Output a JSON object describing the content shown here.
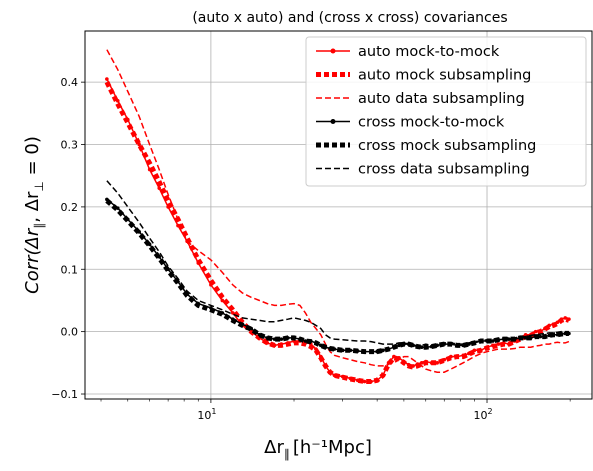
{
  "chart_data": {
    "type": "line",
    "title": "(auto x auto) and (cross x cross) covariances",
    "xlabel_main": "Δr",
    "xlabel_sub": "∥",
    "xlabel_unit": "[h⁻¹Mpc]",
    "ylabel_main": "Corr(Δr",
    "ylabel_sub1": "∥",
    "ylabel_mid": ", Δr",
    "ylabel_sub2": "⊥",
    "ylabel_end": " = 0)",
    "x_scale": "log",
    "xlim": [
      3.5,
      240
    ],
    "ylim": [
      -0.108,
      0.482
    ],
    "yticks": [
      -0.1,
      0.0,
      0.1,
      0.2,
      0.3,
      0.4
    ],
    "ytick_labels": [
      "−0.1",
      "0.0",
      "0.1",
      "0.2",
      "0.3",
      "0.4"
    ],
    "xticks": [
      10,
      100
    ],
    "xtick_base": [
      "10",
      "10"
    ],
    "xtick_exp": [
      "1",
      "2"
    ],
    "grid": true,
    "legend_position": "top-right",
    "series": [
      {
        "name": "auto mock-to-mock",
        "color": "#ff0000",
        "style": "solid-dots",
        "x": [
          4.2,
          4.6,
          5.0,
          5.5,
          6.0,
          6.5,
          7.0,
          7.6,
          8.2,
          9.0,
          10.0,
          11.0,
          12.0,
          13.0,
          14.0,
          15.0,
          16.0,
          17.0,
          18.0,
          19.0,
          20.0,
          21.0,
          22.0,
          23.0,
          24.0,
          25.0,
          26.0,
          27.0,
          28.0,
          30.0,
          32.0,
          34.0,
          36.0,
          38.0,
          40.0,
          42.0,
          44.0,
          46.0,
          48.0,
          50.0,
          52.0,
          54.0,
          56.0,
          58.0,
          60.0,
          63.0,
          66.0,
          70.0,
          74.0,
          78.0,
          82.0,
          86.0,
          90.0,
          95.0,
          100.0,
          105.0,
          110.0,
          115.0,
          120.0,
          126.0,
          132.0,
          138.0,
          144.0,
          150.0,
          156.0,
          162.0,
          168.0,
          174.0,
          180.0,
          186.0,
          192.0,
          198.0
        ],
        "y": [
          0.405,
          0.37,
          0.34,
          0.3,
          0.26,
          0.23,
          0.2,
          0.17,
          0.145,
          0.11,
          0.075,
          0.05,
          0.03,
          0.01,
          0.0,
          -0.01,
          -0.018,
          -0.022,
          -0.02,
          -0.018,
          -0.015,
          -0.015,
          -0.017,
          -0.02,
          -0.028,
          -0.04,
          -0.055,
          -0.065,
          -0.07,
          -0.072,
          -0.075,
          -0.078,
          -0.08,
          -0.08,
          -0.078,
          -0.07,
          -0.05,
          -0.04,
          -0.042,
          -0.048,
          -0.053,
          -0.055,
          -0.052,
          -0.05,
          -0.048,
          -0.05,
          -0.05,
          -0.045,
          -0.04,
          -0.04,
          -0.038,
          -0.035,
          -0.03,
          -0.03,
          -0.025,
          -0.022,
          -0.02,
          -0.018,
          -0.02,
          -0.015,
          -0.01,
          -0.005,
          -0.005,
          0.0,
          0.0,
          0.005,
          0.01,
          0.012,
          0.015,
          0.02,
          0.022,
          0.02
        ]
      },
      {
        "name": "auto mock subsampling",
        "color": "#ff0000",
        "style": "thick-dotted",
        "x": [
          4.2,
          4.6,
          5.0,
          5.5,
          6.0,
          6.5,
          7.0,
          7.6,
          8.2,
          9.0,
          10.0,
          11.0,
          12.0,
          13.0,
          14.0,
          15.0,
          16.0,
          17.0,
          18.0,
          19.0,
          20.0,
          21.0,
          22.0,
          23.0,
          24.0,
          25.0,
          26.0,
          27.0,
          28.0,
          30.0,
          32.0,
          34.0,
          36.0,
          38.0,
          40.0,
          42.0,
          44.0,
          46.0,
          48.0,
          50.0,
          52.0,
          54.0,
          56.0,
          58.0,
          60.0,
          63.0,
          66.0,
          70.0,
          74.0,
          78.0,
          82.0,
          86.0,
          90.0,
          95.0,
          100.0,
          105.0,
          110.0,
          115.0,
          120.0,
          126.0,
          132.0,
          138.0,
          144.0,
          150.0,
          156.0,
          162.0,
          168.0,
          174.0,
          180.0,
          186.0,
          192.0,
          198.0
        ],
        "y": [
          0.4,
          0.365,
          0.335,
          0.3,
          0.27,
          0.24,
          0.21,
          0.18,
          0.15,
          0.115,
          0.082,
          0.055,
          0.035,
          0.015,
          0.0,
          -0.01,
          -0.018,
          -0.022,
          -0.022,
          -0.02,
          -0.018,
          -0.018,
          -0.02,
          -0.024,
          -0.03,
          -0.042,
          -0.055,
          -0.065,
          -0.07,
          -0.073,
          -0.076,
          -0.078,
          -0.08,
          -0.08,
          -0.078,
          -0.07,
          -0.052,
          -0.042,
          -0.044,
          -0.05,
          -0.055,
          -0.057,
          -0.055,
          -0.052,
          -0.05,
          -0.05,
          -0.05,
          -0.046,
          -0.042,
          -0.04,
          -0.04,
          -0.036,
          -0.032,
          -0.03,
          -0.026,
          -0.024,
          -0.022,
          -0.02,
          -0.02,
          -0.016,
          -0.012,
          -0.008,
          -0.006,
          -0.002,
          0.0,
          0.004,
          0.008,
          0.01,
          0.013,
          0.018,
          0.02,
          0.018
        ]
      },
      {
        "name": "auto data subsampling",
        "color": "#ff0000",
        "style": "dashed",
        "x": [
          4.2,
          4.6,
          5.0,
          5.5,
          6.0,
          6.5,
          7.0,
          7.6,
          8.2,
          9.0,
          10.0,
          11.0,
          12.0,
          13.0,
          14.0,
          15.0,
          16.0,
          17.0,
          18.0,
          19.0,
          20.0,
          21.0,
          22.0,
          23.0,
          24.0,
          25.0,
          26.0,
          27.0,
          28.0,
          30.0,
          32.0,
          34.0,
          36.0,
          38.0,
          40.0,
          42.0,
          44.0,
          46.0,
          48.0,
          50.0,
          52.0,
          54.0,
          56.0,
          58.0,
          60.0,
          63.0,
          66.0,
          70.0,
          74.0,
          78.0,
          82.0,
          86.0,
          90.0,
          95.0,
          100.0,
          105.0,
          110.0,
          115.0,
          120.0,
          126.0,
          132.0,
          138.0,
          144.0,
          150.0,
          156.0,
          162.0,
          168.0,
          174.0,
          180.0,
          186.0,
          192.0,
          198.0
        ],
        "y": [
          0.452,
          0.42,
          0.385,
          0.345,
          0.3,
          0.26,
          0.22,
          0.18,
          0.145,
          0.13,
          0.115,
          0.095,
          0.075,
          0.062,
          0.055,
          0.05,
          0.045,
          0.042,
          0.042,
          0.044,
          0.045,
          0.042,
          0.03,
          0.015,
          0.005,
          -0.005,
          -0.02,
          -0.032,
          -0.038,
          -0.042,
          -0.045,
          -0.048,
          -0.05,
          -0.053,
          -0.055,
          -0.055,
          -0.052,
          -0.05,
          -0.045,
          -0.04,
          -0.04,
          -0.045,
          -0.05,
          -0.055,
          -0.06,
          -0.063,
          -0.065,
          -0.065,
          -0.06,
          -0.055,
          -0.05,
          -0.045,
          -0.04,
          -0.035,
          -0.032,
          -0.03,
          -0.028,
          -0.028,
          -0.028,
          -0.027,
          -0.025,
          -0.025,
          -0.025,
          -0.023,
          -0.022,
          -0.02,
          -0.02,
          -0.018,
          -0.017,
          -0.018,
          -0.018,
          -0.016
        ]
      },
      {
        "name": "cross mock-to-mock",
        "color": "#000000",
        "style": "solid-dots",
        "x": [
          4.2,
          4.6,
          5.0,
          5.5,
          6.0,
          6.5,
          7.0,
          7.6,
          8.2,
          9.0,
          10.0,
          11.0,
          12.0,
          13.0,
          14.0,
          15.0,
          16.0,
          17.0,
          18.0,
          19.0,
          20.0,
          21.0,
          22.0,
          23.0,
          24.0,
          25.0,
          26.0,
          27.0,
          28.0,
          30.0,
          32.0,
          34.0,
          36.0,
          38.0,
          40.0,
          42.0,
          44.0,
          46.0,
          48.0,
          50.0,
          52.0,
          54.0,
          56.0,
          58.0,
          60.0,
          63.0,
          66.0,
          70.0,
          74.0,
          78.0,
          82.0,
          86.0,
          90.0,
          95.0,
          100.0,
          105.0,
          110.0,
          115.0,
          120.0,
          126.0,
          132.0,
          138.0,
          144.0,
          150.0,
          156.0,
          162.0,
          168.0,
          174.0,
          180.0,
          186.0,
          192.0,
          198.0
        ],
        "y": [
          0.212,
          0.198,
          0.18,
          0.16,
          0.14,
          0.12,
          0.1,
          0.08,
          0.06,
          0.045,
          0.038,
          0.03,
          0.02,
          0.012,
          0.005,
          -0.005,
          -0.01,
          -0.012,
          -0.012,
          -0.01,
          -0.01,
          -0.012,
          -0.015,
          -0.015,
          -0.018,
          -0.022,
          -0.025,
          -0.027,
          -0.028,
          -0.03,
          -0.03,
          -0.031,
          -0.032,
          -0.032,
          -0.032,
          -0.03,
          -0.028,
          -0.025,
          -0.022,
          -0.02,
          -0.02,
          -0.022,
          -0.024,
          -0.025,
          -0.025,
          -0.024,
          -0.022,
          -0.02,
          -0.02,
          -0.022,
          -0.022,
          -0.02,
          -0.018,
          -0.015,
          -0.015,
          -0.015,
          -0.013,
          -0.012,
          -0.012,
          -0.012,
          -0.01,
          -0.01,
          -0.01,
          -0.008,
          -0.008,
          -0.008,
          -0.006,
          -0.005,
          -0.005,
          -0.004,
          -0.003,
          -0.003
        ]
      },
      {
        "name": "cross mock subsampling",
        "color": "#000000",
        "style": "thick-dotted",
        "x": [
          4.2,
          4.6,
          5.0,
          5.5,
          6.0,
          6.5,
          7.0,
          7.6,
          8.2,
          9.0,
          10.0,
          11.0,
          12.0,
          13.0,
          14.0,
          15.0,
          16.0,
          17.0,
          18.0,
          19.0,
          20.0,
          21.0,
          22.0,
          23.0,
          24.0,
          25.0,
          26.0,
          27.0,
          28.0,
          30.0,
          32.0,
          34.0,
          36.0,
          38.0,
          40.0,
          42.0,
          44.0,
          46.0,
          48.0,
          50.0,
          52.0,
          54.0,
          56.0,
          58.0,
          60.0,
          63.0,
          66.0,
          70.0,
          74.0,
          78.0,
          82.0,
          86.0,
          90.0,
          95.0,
          100.0,
          105.0,
          110.0,
          115.0,
          120.0,
          126.0,
          132.0,
          138.0,
          144.0,
          150.0,
          156.0,
          162.0,
          168.0,
          174.0,
          180.0,
          186.0,
          192.0,
          198.0
        ],
        "y": [
          0.21,
          0.195,
          0.178,
          0.158,
          0.138,
          0.118,
          0.098,
          0.078,
          0.058,
          0.042,
          0.035,
          0.028,
          0.018,
          0.01,
          0.004,
          -0.005,
          -0.01,
          -0.012,
          -0.012,
          -0.01,
          -0.01,
          -0.012,
          -0.015,
          -0.016,
          -0.018,
          -0.022,
          -0.025,
          -0.027,
          -0.028,
          -0.03,
          -0.03,
          -0.031,
          -0.032,
          -0.032,
          -0.032,
          -0.03,
          -0.028,
          -0.025,
          -0.022,
          -0.02,
          -0.02,
          -0.022,
          -0.024,
          -0.025,
          -0.025,
          -0.024,
          -0.022,
          -0.02,
          -0.02,
          -0.022,
          -0.022,
          -0.02,
          -0.018,
          -0.015,
          -0.015,
          -0.015,
          -0.013,
          -0.012,
          -0.012,
          -0.012,
          -0.01,
          -0.01,
          -0.01,
          -0.008,
          -0.008,
          -0.008,
          -0.006,
          -0.005,
          -0.005,
          -0.004,
          -0.003,
          -0.003
        ]
      },
      {
        "name": "cross data subsampling",
        "color": "#000000",
        "style": "dashed",
        "x": [
          4.2,
          4.6,
          5.0,
          5.5,
          6.0,
          6.5,
          7.0,
          7.6,
          8.2,
          9.0,
          10.0,
          11.0,
          12.0,
          13.0,
          14.0,
          15.0,
          16.0,
          17.0,
          18.0,
          19.0,
          20.0,
          21.0,
          22.0,
          23.0,
          24.0,
          25.0,
          26.0,
          27.0,
          28.0,
          30.0,
          32.0,
          34.0,
          36.0,
          38.0,
          40.0,
          42.0,
          44.0,
          46.0,
          48.0,
          50.0,
          52.0,
          54.0,
          56.0,
          58.0,
          60.0,
          63.0,
          66.0,
          70.0,
          74.0,
          78.0,
          82.0,
          86.0,
          90.0,
          95.0,
          100.0,
          105.0,
          110.0,
          115.0,
          120.0,
          126.0,
          132.0,
          138.0,
          144.0,
          150.0,
          156.0,
          162.0,
          168.0,
          174.0,
          180.0,
          186.0,
          192.0,
          198.0
        ],
        "y": [
          0.242,
          0.222,
          0.2,
          0.175,
          0.15,
          0.128,
          0.105,
          0.085,
          0.065,
          0.05,
          0.042,
          0.035,
          0.028,
          0.022,
          0.02,
          0.018,
          0.016,
          0.016,
          0.018,
          0.02,
          0.022,
          0.02,
          0.018,
          0.015,
          0.01,
          0.005,
          -0.005,
          -0.01,
          -0.012,
          -0.013,
          -0.014,
          -0.015,
          -0.015,
          -0.016,
          -0.018,
          -0.02,
          -0.02,
          -0.02,
          -0.018,
          -0.018,
          -0.02,
          -0.022,
          -0.022,
          -0.022,
          -0.02,
          -0.022,
          -0.02,
          -0.018,
          -0.018,
          -0.02,
          -0.02,
          -0.018,
          -0.016,
          -0.015,
          -0.013,
          -0.012,
          -0.012,
          -0.01,
          -0.01,
          -0.01,
          -0.008,
          -0.008,
          -0.006,
          -0.005,
          -0.004,
          -0.003,
          -0.002,
          -0.002,
          -0.001,
          0.0,
          0.0,
          0.0
        ]
      }
    ]
  }
}
